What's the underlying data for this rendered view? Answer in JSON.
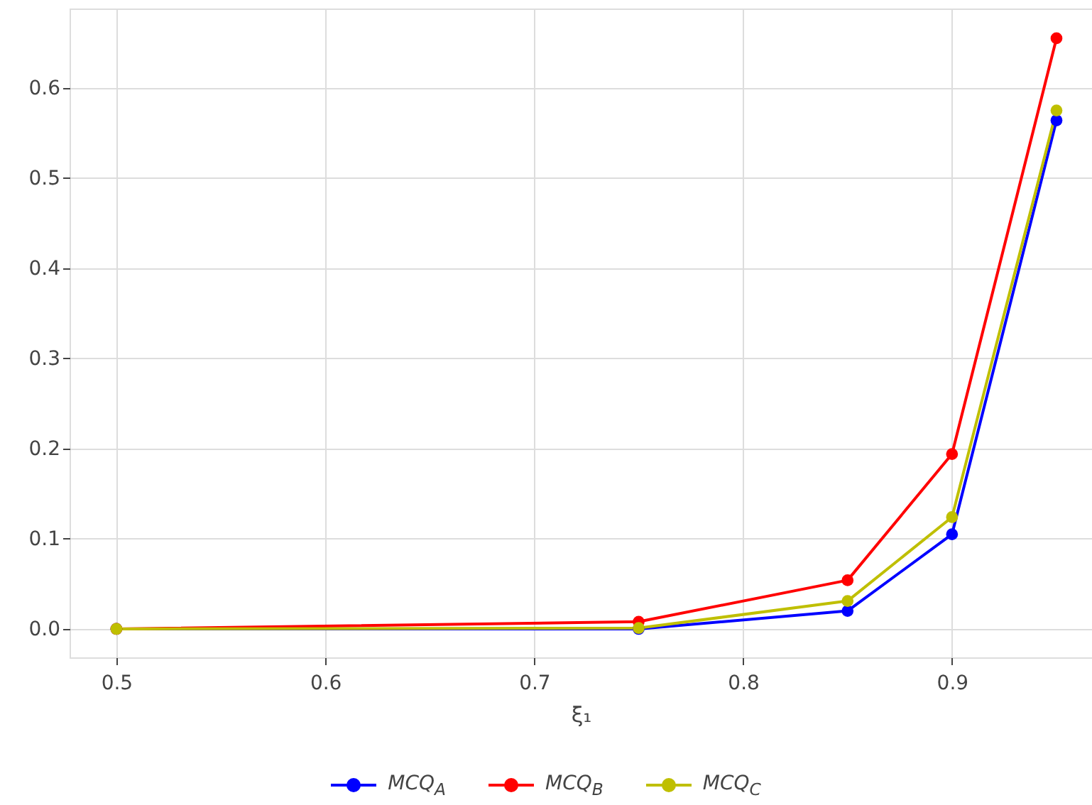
{
  "chart_data": {
    "type": "line",
    "xlabel": "ξ₁",
    "x": [
      0.5,
      0.75,
      0.85,
      0.9,
      0.95
    ],
    "series": [
      {
        "name": "MCQ$_{A}$",
        "color": "#0000ff",
        "values": [
          0,
          0,
          0.02,
          0.105,
          0.564
        ]
      },
      {
        "name": "MCQ$_{B}$",
        "color": "#ff0000",
        "values": [
          0,
          0.008,
          0.054,
          0.194,
          0.655
        ]
      },
      {
        "name": "MCQ$_{C}$",
        "color": "#bfbf00",
        "values": [
          0,
          0.001,
          0.031,
          0.124,
          0.575
        ]
      }
    ],
    "xlim": [
      0.4776,
      0.967
    ],
    "xticks": [
      0.5,
      0.6,
      0.7,
      0.8,
      0.9
    ],
    "ylim": [
      -0.0315,
      0.688
    ],
    "yticks": [
      {
        "value": 0,
        "label": "0.0"
      },
      0.1,
      0.2,
      0.3,
      0.4,
      0.5,
      0.6
    ],
    "grid": true,
    "legend": "bottom",
    "marker": "circle",
    "line_style": "solid"
  }
}
